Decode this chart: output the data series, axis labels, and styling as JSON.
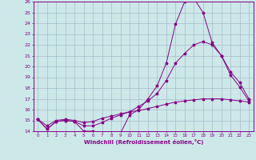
{
  "xlabel": "Windchill (Refroidissement éolien,°C)",
  "xlim": [
    -0.5,
    23.5
  ],
  "ylim": [
    14,
    26
  ],
  "yticks": [
    14,
    15,
    16,
    17,
    18,
    19,
    20,
    21,
    22,
    23,
    24,
    25,
    26
  ],
  "xticks": [
    0,
    1,
    2,
    3,
    4,
    5,
    6,
    7,
    8,
    9,
    10,
    11,
    12,
    13,
    14,
    15,
    16,
    17,
    18,
    19,
    20,
    21,
    22,
    23
  ],
  "bg_color": "#cce8e8",
  "grid_color": "#aabbcc",
  "line_color": "#880088",
  "line1_x": [
    0,
    1,
    2,
    3,
    4,
    5,
    6,
    7,
    8,
    9,
    10,
    11,
    12,
    13,
    14,
    15,
    16,
    17,
    18,
    19,
    20,
    21,
    22,
    23
  ],
  "line1_y": [
    15.1,
    14.2,
    14.9,
    15.0,
    14.9,
    14.0,
    14.0,
    13.8,
    13.8,
    13.8,
    15.5,
    16.0,
    17.0,
    18.2,
    20.3,
    23.9,
    26.0,
    26.3,
    25.0,
    22.2,
    21.0,
    19.2,
    18.1,
    16.8
  ],
  "line2_x": [
    0,
    1,
    2,
    3,
    4,
    5,
    6,
    7,
    8,
    9,
    10,
    11,
    12,
    13,
    14,
    15,
    16,
    17,
    18,
    19,
    20,
    21,
    22,
    23
  ],
  "line2_y": [
    15.1,
    14.2,
    14.9,
    15.0,
    14.9,
    14.5,
    14.5,
    14.8,
    15.2,
    15.5,
    15.8,
    16.3,
    16.8,
    17.5,
    18.7,
    20.3,
    21.2,
    22.0,
    22.3,
    22.0,
    21.0,
    19.5,
    18.5,
    17.0
  ],
  "line3_x": [
    0,
    1,
    2,
    3,
    4,
    5,
    6,
    7,
    8,
    9,
    10,
    11,
    12,
    13,
    14,
    15,
    16,
    17,
    18,
    19,
    20,
    21,
    22,
    23
  ],
  "line3_y": [
    15.1,
    14.5,
    15.0,
    15.1,
    15.0,
    14.8,
    14.9,
    15.2,
    15.4,
    15.6,
    15.8,
    15.9,
    16.1,
    16.3,
    16.5,
    16.7,
    16.8,
    16.9,
    17.0,
    17.0,
    17.0,
    16.9,
    16.8,
    16.7
  ]
}
